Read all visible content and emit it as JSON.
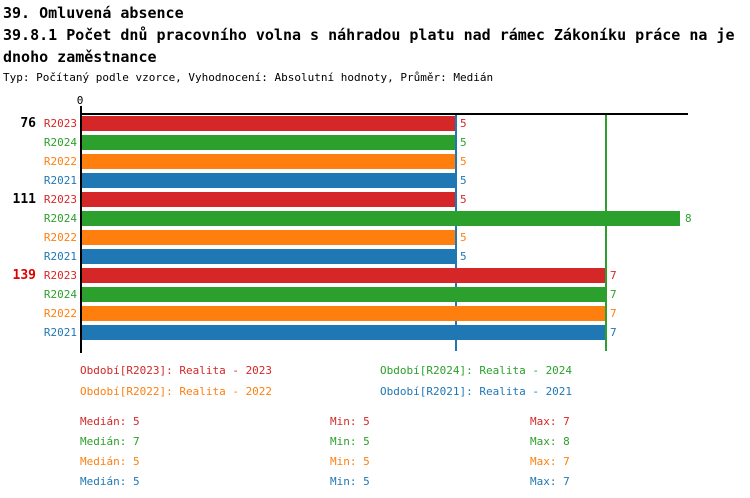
{
  "header": {
    "title": "39. Omluvená absence",
    "subtitle_lines": [
      "39.8.1 Počet dnů pracovního volna s náhradou platu nad rámec Zákoníku práce na je",
      "dnoho zaměstnance"
    ],
    "meta": "Typ: Počítaný podle vzorce, Vyhodnocení: Absolutní hodnoty, Průměr: Medián"
  },
  "chart_data": {
    "type": "bar",
    "orientation": "horizontal",
    "title": "39.8.1 Počet dnů pracovního volna s náhradou platu nad rámec Zákoníku práce na jednoho zaměstnance",
    "x_axis": {
      "origin_label": "0",
      "range": [
        0,
        8.1
      ],
      "ticks": [
        0
      ]
    },
    "series": [
      {
        "id": "R2023",
        "name": "Realita - 2023",
        "color": "#d62728"
      },
      {
        "id": "R2024",
        "name": "Realita - 2024",
        "color": "#2ca02c"
      },
      {
        "id": "R2022",
        "name": "Realita - 2022",
        "color": "#ff7f0e"
      },
      {
        "id": "R2021",
        "name": "Realita - 2021",
        "color": "#1f77b4"
      }
    ],
    "groups": [
      {
        "label": "76",
        "highlighted": false,
        "values": [
          5,
          5,
          5,
          5
        ]
      },
      {
        "label": "111",
        "highlighted": false,
        "values": [
          5,
          8,
          5,
          5
        ]
      },
      {
        "label": "139",
        "highlighted": true,
        "values": [
          7,
          7,
          7,
          7
        ]
      }
    ],
    "reference_lines": [
      {
        "value": 5,
        "color": "#1f77b4"
      },
      {
        "value": 7,
        "color": "#2ca02c"
      }
    ],
    "legend_position": "bottom",
    "grid": false
  },
  "legend": {
    "entries": [
      {
        "series": "R2023",
        "text": "Období[R2023]: Realita - 2023",
        "color": "#d62728"
      },
      {
        "series": "R2024",
        "text": "Období[R2024]: Realita - 2024",
        "color": "#2ca02c"
      },
      {
        "series": "R2022",
        "text": "Období[R2022]: Realita - 2022",
        "color": "#ff7f0e"
      },
      {
        "series": "R2021",
        "text": "Období[R2021]: Realita - 2021",
        "color": "#1f77b4"
      }
    ]
  },
  "stats": {
    "rows": [
      {
        "series": "R2023",
        "color": "#d62728",
        "median": "Medián: 5",
        "min": "Min: 5",
        "max": "Max: 7"
      },
      {
        "series": "R2024",
        "color": "#2ca02c",
        "median": "Medián: 7",
        "min": "Min: 5",
        "max": "Max: 8"
      },
      {
        "series": "R2022",
        "color": "#ff7f0e",
        "median": "Medián: 5",
        "min": "Min: 5",
        "max": "Max: 7"
      },
      {
        "series": "R2021",
        "color": "#1f77b4",
        "median": "Medián: 5",
        "min": "Min: 5",
        "max": "Max: 7"
      }
    ]
  },
  "colors": {
    "axis": "#000000",
    "highlighted_group_label": "#dd0000"
  }
}
